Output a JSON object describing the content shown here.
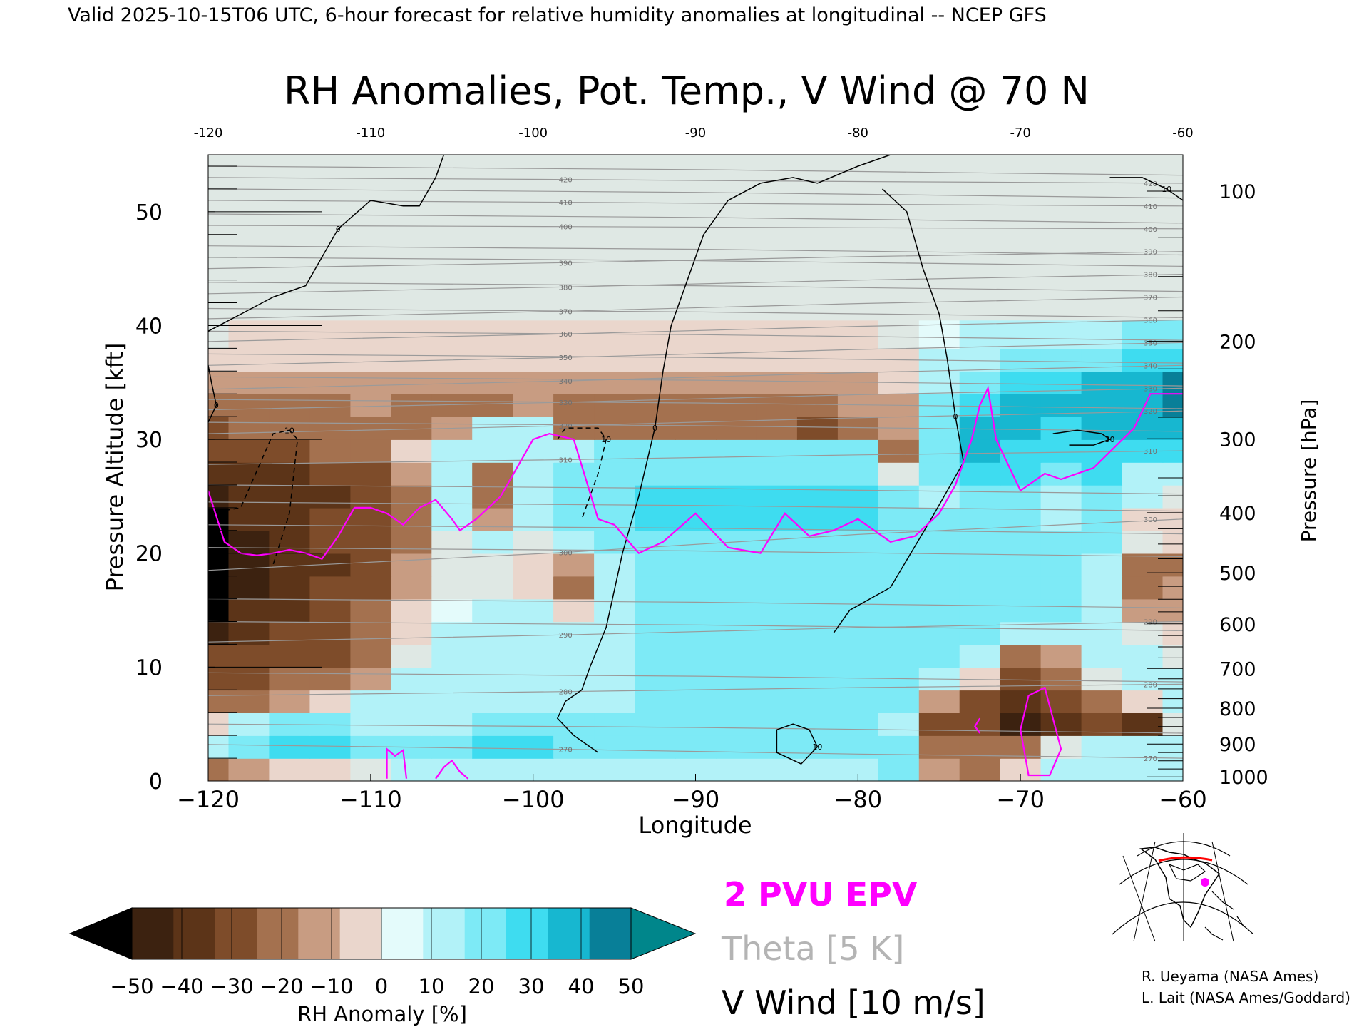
{
  "header": {
    "valid_line": "Valid 2025-10-15T06 UTC, 6-hour forecast for relative humidity anomalies at longitudinal -- NCEP GFS"
  },
  "chart_data": {
    "type": "heatmap",
    "title": "RH Anomalies, Pot. Temp., V Wind @ 70 N",
    "xlabel": "Longitude",
    "ylabel": "Pressure Altitude [kft]",
    "ylabel_right": "Pressure [hPa]",
    "xlim": [
      -120,
      -60
    ],
    "ylim": [
      0,
      55
    ],
    "x_ticks": [
      -120,
      -110,
      -100,
      -90,
      -80,
      -70,
      -60
    ],
    "x_tick_labels": [
      "−120",
      "−110",
      "−100",
      "−90",
      "−80",
      "−70",
      "−60"
    ],
    "x_top_tick_labels": [
      "-120",
      "-110",
      "-100",
      "-90",
      "-80",
      "-70",
      "-60"
    ],
    "y_ticks": [
      0,
      10,
      20,
      30,
      40,
      50
    ],
    "y_tick_labels": [
      "0",
      "10",
      "20",
      "30",
      "40",
      "50"
    ],
    "pressure_ticks_hpa": [
      1000,
      900,
      800,
      700,
      600,
      500,
      400,
      300,
      200,
      100
    ],
    "pressure_tick_labels": [
      "1000",
      "900",
      "800",
      "700",
      "600",
      "500",
      "400",
      "300",
      "200",
      "100"
    ],
    "grid": false,
    "colorbar": {
      "label": "RH Anomaly [%]",
      "tick_values": [
        -50,
        -40,
        -30,
        -20,
        -10,
        0,
        10,
        20,
        30,
        40,
        50
      ],
      "tick_labels": [
        "−50",
        "−40",
        "−30",
        "−20",
        "−10",
        "0",
        "10",
        "20",
        "30",
        "40",
        "50"
      ],
      "colors": [
        "#000000",
        "#3c2210",
        "#5c3418",
        "#7e4c2a",
        "#a4714f",
        "#c89c82",
        "#ead6cc",
        "#e4fbfb",
        "#b2f2f8",
        "#7deaf6",
        "#3edcf0",
        "#17b7d0",
        "#087f98",
        "#00868b"
      ]
    },
    "rh_field": {
      "lons": [
        -120,
        -117.5,
        -115,
        -112.5,
        -110,
        -107.5,
        -105,
        -102.5,
        -100,
        -97.5,
        -95,
        -92.5,
        -90,
        -87.5,
        -85,
        -82.5,
        -80,
        -77.5,
        -75,
        -72.5,
        -70,
        -67.5,
        -65,
        -62.5,
        -60
      ],
      "alts_kft": [
        1,
        3,
        5,
        7,
        9,
        11,
        13,
        15,
        17,
        19,
        21,
        23,
        25,
        27,
        29,
        31,
        33,
        35,
        37,
        39,
        42,
        46,
        50,
        55
      ],
      "values": [
        [
          -12,
          -8,
          -5,
          -3,
          0,
          5,
          8,
          10,
          10,
          10,
          10,
          10,
          10,
          10,
          10,
          10,
          10,
          15,
          -8,
          -12,
          -5,
          5,
          10,
          8,
          5
        ],
        [
          12,
          20,
          25,
          25,
          20,
          20,
          22,
          25,
          25,
          22,
          22,
          22,
          22,
          22,
          22,
          22,
          22,
          15,
          -12,
          -20,
          -15,
          0,
          10,
          5,
          5
        ],
        [
          -5,
          5,
          20,
          20,
          10,
          5,
          10,
          15,
          15,
          15,
          15,
          20,
          20,
          20,
          20,
          20,
          20,
          10,
          -22,
          -30,
          -45,
          -35,
          -25,
          -40,
          0
        ],
        [
          -20,
          -15,
          -10,
          -5,
          5,
          10,
          10,
          10,
          10,
          10,
          10,
          15,
          15,
          15,
          15,
          15,
          15,
          15,
          -10,
          -25,
          -40,
          -30,
          -20,
          -5,
          5
        ],
        [
          -25,
          -22,
          -20,
          -18,
          -10,
          5,
          8,
          8,
          8,
          8,
          8,
          15,
          15,
          15,
          15,
          15,
          15,
          15,
          10,
          -5,
          -25,
          -20,
          0,
          5,
          5
        ],
        [
          -30,
          -28,
          -25,
          -22,
          -15,
          0,
          5,
          5,
          5,
          5,
          10,
          15,
          15,
          15,
          15,
          15,
          15,
          15,
          15,
          10,
          -15,
          -10,
          10,
          5,
          0
        ],
        [
          -45,
          -35,
          -30,
          -25,
          -18,
          -2,
          5,
          5,
          5,
          5,
          10,
          15,
          15,
          15,
          15,
          15,
          15,
          15,
          15,
          15,
          5,
          5,
          10,
          0,
          -5
        ],
        [
          -55,
          -40,
          -35,
          -28,
          -20,
          -5,
          2,
          5,
          5,
          -5,
          10,
          15,
          15,
          15,
          15,
          15,
          15,
          15,
          15,
          15,
          15,
          15,
          10,
          -10,
          -8
        ],
        [
          -55,
          -45,
          -38,
          -30,
          -22,
          -8,
          0,
          0,
          -5,
          -12,
          5,
          15,
          15,
          15,
          15,
          15,
          15,
          15,
          15,
          15,
          15,
          15,
          10,
          -12,
          -10
        ],
        [
          -58,
          -48,
          -40,
          -32,
          -25,
          -10,
          0,
          0,
          -5,
          -10,
          10,
          18,
          18,
          18,
          18,
          18,
          18,
          18,
          15,
          15,
          15,
          15,
          10,
          -12,
          -12
        ],
        [
          -55,
          -45,
          -38,
          -30,
          -25,
          -12,
          0,
          5,
          0,
          5,
          15,
          20,
          20,
          20,
          20,
          20,
          20,
          18,
          15,
          15,
          18,
          18,
          15,
          0,
          -5
        ],
        [
          -50,
          -40,
          -35,
          -30,
          -28,
          -15,
          5,
          -10,
          10,
          15,
          20,
          25,
          25,
          25,
          25,
          25,
          25,
          20,
          15,
          15,
          18,
          10,
          18,
          -5,
          -5
        ],
        [
          -45,
          -38,
          -40,
          -35,
          -25,
          -12,
          8,
          -20,
          10,
          15,
          20,
          25,
          25,
          25,
          25,
          25,
          25,
          15,
          10,
          20,
          20,
          5,
          20,
          5,
          0
        ],
        [
          -38,
          -35,
          -35,
          -30,
          -22,
          -8,
          5,
          -12,
          10,
          15,
          20,
          20,
          20,
          20,
          20,
          20,
          20,
          0,
          15,
          25,
          25,
          20,
          25,
          10,
          5
        ],
        [
          -28,
          -25,
          -22,
          -20,
          -15,
          -5,
          5,
          5,
          10,
          5,
          15,
          15,
          15,
          15,
          15,
          15,
          15,
          -15,
          20,
          35,
          30,
          25,
          30,
          30,
          25
        ],
        [
          -22,
          -20,
          -18,
          -15,
          -12,
          -12,
          -10,
          5,
          5,
          -15,
          -15,
          -20,
          -20,
          -20,
          -18,
          -25,
          -15,
          -10,
          20,
          40,
          35,
          30,
          35,
          35,
          35
        ],
        [
          -15,
          -15,
          -12,
          -12,
          -10,
          -12,
          -12,
          -12,
          -10,
          -12,
          -12,
          -12,
          -12,
          -12,
          -12,
          -12,
          -10,
          -8,
          15,
          30,
          35,
          35,
          40,
          40,
          45
        ],
        [
          -10,
          -8,
          -8,
          -8,
          -8,
          -8,
          -8,
          -8,
          -8,
          -8,
          -8,
          -8,
          -8,
          -8,
          -8,
          -8,
          -8,
          -5,
          10,
          20,
          25,
          30,
          35,
          40,
          45
        ],
        [
          -5,
          -5,
          -5,
          -5,
          -5,
          -5,
          -5,
          -5,
          -5,
          -5,
          -5,
          -5,
          -5,
          -5,
          -5,
          -5,
          -5,
          -2,
          5,
          10,
          15,
          18,
          20,
          25,
          30
        ],
        [
          0,
          -2,
          -2,
          -2,
          -2,
          -2,
          -2,
          -2,
          -2,
          -2,
          -2,
          -2,
          -2,
          -2,
          -2,
          -2,
          -2,
          0,
          2,
          5,
          8,
          10,
          12,
          15,
          18
        ],
        [
          0,
          0,
          0,
          0,
          0,
          0,
          0,
          0,
          0,
          0,
          0,
          0,
          0,
          0,
          0,
          0,
          0,
          0,
          0,
          0,
          0,
          0,
          0,
          0,
          0
        ],
        [
          0,
          0,
          0,
          0,
          0,
          0,
          0,
          0,
          0,
          0,
          0,
          0,
          0,
          0,
          0,
          0,
          0,
          0,
          0,
          0,
          0,
          0,
          0,
          0,
          0
        ],
        [
          0,
          0,
          0,
          0,
          0,
          0,
          0,
          0,
          0,
          0,
          0,
          0,
          0,
          0,
          0,
          0,
          0,
          0,
          0,
          0,
          0,
          0,
          0,
          0,
          0
        ],
        [
          0,
          0,
          0,
          0,
          0,
          0,
          0,
          0,
          0,
          0,
          0,
          0,
          0,
          0,
          0,
          0,
          0,
          0,
          0,
          0,
          0,
          0,
          0,
          0,
          0
        ]
      ]
    },
    "theta_contours": {
      "label_values": [
        270,
        280,
        290,
        300,
        310,
        320,
        330,
        340,
        350,
        360,
        370,
        380,
        390,
        400,
        410,
        420
      ],
      "label_strings": [
        "270",
        "280",
        "290",
        "300",
        "310",
        "320",
        "330",
        "340",
        "350",
        "360",
        "370",
        "380",
        "390",
        "400",
        "410",
        "420"
      ],
      "label_lon": -98,
      "right_label_lon": -62,
      "alt_left_kft": [
        3.2,
        7.5,
        12.2,
        18.5,
        27.8,
        30.5,
        32.6,
        34.4,
        36.5,
        38.6,
        40.6,
        42.8,
        45.0,
        48.8,
        51.0,
        53.0
      ],
      "alt_right_kft": [
        2.0,
        8.5,
        14.0,
        23.0,
        29.0,
        32.5,
        34.5,
        36.5,
        38.5,
        40.5,
        42.5,
        44.5,
        46.5,
        48.5,
        50.5,
        52.5
      ],
      "unlabeled_alt_kft": [
        5.0,
        9.5,
        14.0,
        16.0,
        20.5,
        22.5,
        24.5,
        26.0,
        31.5,
        33.5,
        35.5,
        37.5,
        39.5,
        41.5,
        43.8,
        46.0,
        47.0,
        49.8,
        52.0,
        54.0
      ]
    },
    "pv_2pvu_line": {
      "lon": [
        -120,
        -119,
        -118,
        -117,
        -116,
        -115,
        -114,
        -113,
        -112,
        -111,
        -110,
        -109,
        -108,
        -107,
        -106,
        -105,
        -104.5,
        -103.5,
        -102,
        -100,
        -99,
        -97.5,
        -96,
        -95,
        -93.5,
        -92,
        -90,
        -88,
        -86,
        -84.5,
        -83,
        -81.5,
        -80,
        -78,
        -76.5,
        -75,
        -74,
        -73,
        -72.5,
        -72,
        -71.5,
        -70,
        -68.5,
        -67.5,
        -65.5,
        -63,
        -62,
        -60
      ],
      "alt": [
        25.5,
        21,
        20,
        19.8,
        20,
        20.3,
        20,
        19.5,
        21.5,
        24,
        24,
        23.5,
        22.5,
        24,
        24.7,
        23,
        22,
        23,
        25,
        30,
        30.5,
        30,
        23,
        22.5,
        20,
        21,
        23.5,
        20.5,
        20,
        23.5,
        21.5,
        22,
        23,
        21,
        21.5,
        23.5,
        26,
        30,
        33,
        34.5,
        30,
        25.5,
        27,
        26.5,
        27.5,
        31,
        34,
        34
      ]
    },
    "pv_2pvu_low_segments": [
      {
        "lon": [
          -109,
          -109,
          -108.5,
          -108,
          -107.8
        ],
        "alt": [
          0.2,
          2.8,
          2.2,
          2.7,
          0.2
        ]
      },
      {
        "lon": [
          -106,
          -105.5,
          -105,
          -104.5,
          -104
        ],
        "alt": [
          0.2,
          1.2,
          1.8,
          0.8,
          0.2
        ]
      },
      {
        "lon": [
          -72.5,
          -72.8,
          -72.5
        ],
        "alt": [
          5.5,
          4.8,
          4.2
        ]
      },
      {
        "lon": [
          -70,
          -69.5,
          -68.5,
          -68,
          -67.5,
          -68.2,
          -69.5,
          -70
        ],
        "alt": [
          4.5,
          7.5,
          8.2,
          5.5,
          2.8,
          0.5,
          0.5,
          4.5
        ]
      }
    ],
    "vwind_contours": [
      {
        "label": "0",
        "dashed": false,
        "lon": [
          -105.5,
          -106,
          -107,
          -108,
          -110,
          -112,
          -114,
          -116,
          -118,
          -120
        ],
        "alt": [
          55,
          53,
          50.5,
          50.5,
          51,
          48.5,
          43.5,
          42.5,
          41,
          39.5
        ]
      },
      {
        "label": "0",
        "dashed": false,
        "lon": [
          -78,
          -80,
          -82.5,
          -84,
          -86,
          -88,
          -89.5,
          -90.5,
          -91.5,
          -92,
          -92.5,
          -93.5,
          -94.5,
          -95.5,
          -96.5,
          -97,
          -98,
          -98.5,
          -97.5,
          -96
        ],
        "alt": [
          55,
          54,
          52.5,
          53,
          52.5,
          51,
          48,
          44,
          40,
          36,
          31,
          25,
          20,
          13.5,
          10,
          8,
          7,
          5.5,
          4,
          2.5
        ]
      },
      {
        "label": "0",
        "dashed": false,
        "lon": [
          -78.5,
          -77,
          -76,
          -75,
          -74.5,
          -74,
          -73.5,
          -75.5,
          -78,
          -80.5,
          -81.5
        ],
        "alt": [
          52,
          50,
          45,
          41,
          37,
          32,
          28,
          23,
          17,
          15,
          13
        ]
      },
      {
        "label": "10",
        "dashed": false,
        "lon": [
          -64.5,
          -62.5,
          -61,
          -60
        ],
        "alt": [
          53,
          53,
          52,
          51
        ]
      },
      {
        "label": "0",
        "dashed": false,
        "lon": [
          -120,
          -119.8,
          -119.5,
          -120
        ],
        "alt": [
          36.5,
          35,
          33,
          31.5
        ]
      },
      {
        "label": "30",
        "dashed": false,
        "lon": [
          -68,
          -66.5,
          -65,
          -64.5,
          -65.5,
          -67
        ],
        "alt": [
          30.5,
          30.8,
          30.5,
          30,
          29.5,
          29.5
        ]
      },
      {
        "label": "10",
        "dashed": false,
        "lon": [
          -85,
          -84,
          -83,
          -82.5,
          -83.5,
          -85,
          -85
        ],
        "alt": [
          4.5,
          5,
          4.5,
          3,
          1.5,
          2.5,
          4.5
        ]
      },
      {
        "label": "10",
        "dashed": true,
        "lon": [
          -120,
          -118,
          -116,
          -115,
          -114.5,
          -115,
          -116
        ],
        "alt": [
          23.5,
          24,
          30.5,
          30.8,
          30,
          23.5,
          19
        ]
      },
      {
        "label": "10",
        "dashed": true,
        "lon": [
          -98.5,
          -98,
          -96,
          -95.5,
          -96,
          -97
        ],
        "alt": [
          30,
          31,
          31,
          30,
          27,
          23
        ]
      }
    ],
    "legend_entries": [
      "2 PVU EPV",
      "Theta [5 K]",
      "V Wind [10 m/s]"
    ],
    "legend_colors": {
      "pv": "#ff00ff",
      "theta": "#b4b4b4",
      "vwind": "#000000"
    },
    "credits": [
      "R. Ueyama (NASA Ames)",
      "L. Lait (NASA Ames/Goddard)"
    ]
  }
}
